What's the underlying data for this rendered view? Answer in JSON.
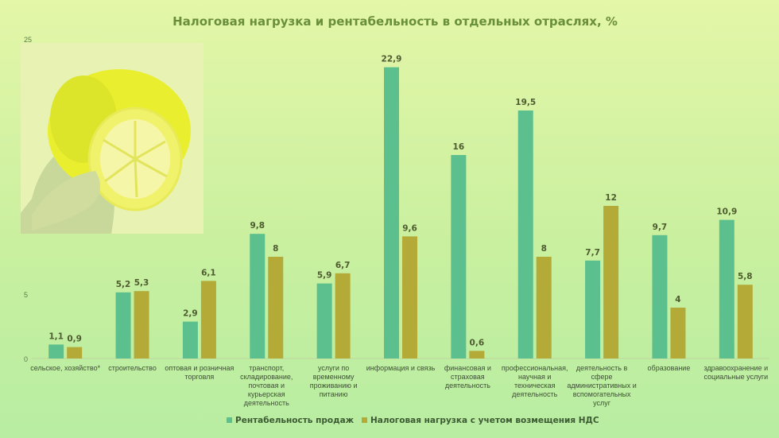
{
  "chart_data": {
    "type": "bar",
    "title": "Налоговая нагрузка и рентабельность в отдельных отраслях, %",
    "ylim": [
      0,
      25
    ],
    "yticks": [
      "0",
      "5",
      "25"
    ],
    "grid": false,
    "legend_position": "bottom",
    "categories": [
      [
        "сельское, хозяйство*"
      ],
      [
        "строительство"
      ],
      [
        "оптовая и розничная",
        "торговля"
      ],
      [
        "транспорт,",
        "складирование,",
        "почтовая и",
        "курьерская",
        "деятельность"
      ],
      [
        "услуги по",
        "временному",
        "проживанию и",
        "питанию"
      ],
      [
        "информация и связь"
      ],
      [
        "финансовая и",
        "страховая",
        "деятельность"
      ],
      [
        "профессиональная,",
        "научная и",
        "техническая",
        "деятельность"
      ],
      [
        "деятельность в",
        "сфере",
        "административных и",
        "вспомогательных",
        "услуг"
      ],
      [
        "образование"
      ],
      [
        "здравоохранение и",
        "социальные услуги"
      ]
    ],
    "series": [
      {
        "name": "Рентабельность продаж",
        "color": "#5cbf8e",
        "values": [
          1.1,
          5.2,
          2.9,
          9.8,
          5.9,
          22.9,
          16,
          19.5,
          7.7,
          9.7,
          10.9
        ],
        "labels": [
          "1,1",
          "5,2",
          "2,9",
          "9,8",
          "5,9",
          "22,9",
          "16",
          "19,5",
          "7,7",
          "9,7",
          "10,9"
        ]
      },
      {
        "name": "Налоговая нагрузка с учетом возмещения НДС",
        "color": "#b3aa38",
        "values": [
          0.9,
          5.3,
          6.1,
          8,
          6.7,
          9.6,
          0.6,
          8,
          12,
          4,
          5.8
        ],
        "labels": [
          "0,9",
          "5,3",
          "6,1",
          "8",
          "6,7",
          "9,6",
          "0,6",
          "8",
          "12",
          "4",
          "5,8"
        ]
      }
    ]
  },
  "icons": [
    "lemon-photo"
  ]
}
